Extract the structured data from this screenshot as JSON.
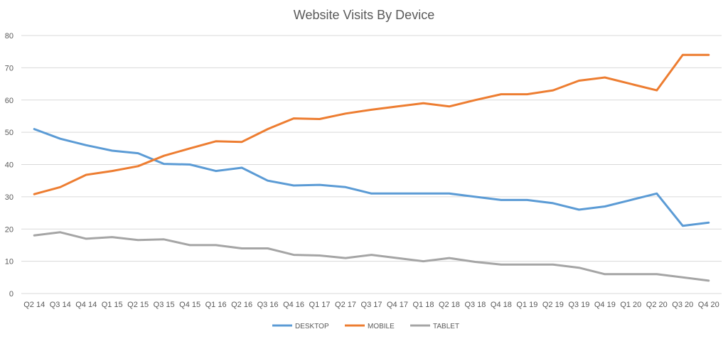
{
  "chart_data": {
    "type": "line",
    "title": "Website Visits By Device",
    "xlabel": "",
    "ylabel": "",
    "ylim": [
      0,
      80
    ],
    "yticks": [
      0,
      10,
      20,
      30,
      40,
      50,
      60,
      70,
      80
    ],
    "grid": true,
    "legend_position": "bottom",
    "categories": [
      "Q2 14",
      "Q3 14",
      "Q4 14",
      "Q1 15",
      "Q2 15",
      "Q3 15",
      "Q4 15",
      "Q1 16",
      "Q2 16",
      "Q3 16",
      "Q4 16",
      "Q1 17",
      "Q2 17",
      "Q3 17",
      "Q4 17",
      "Q1 18",
      "Q2 18",
      "Q3 18",
      "Q4 18",
      "Q1 19",
      "Q2 19",
      "Q3 19",
      "Q4 19",
      "Q1 20",
      "Q2 20",
      "Q3 20",
      "Q4 20"
    ],
    "series": [
      {
        "name": "DESKTOP",
        "color": "#5b9bd5",
        "values": [
          51,
          48,
          46,
          44.3,
          43.5,
          40.2,
          40,
          38,
          39,
          35,
          33.5,
          33.7,
          33,
          31,
          31,
          31,
          31,
          30,
          29,
          29,
          28,
          26,
          27,
          29,
          31,
          21,
          22
        ]
      },
      {
        "name": "MOBILE",
        "color": "#ed7d31",
        "values": [
          30.8,
          33,
          36.8,
          38,
          39.5,
          42.7,
          45,
          47.2,
          47,
          51,
          54.3,
          54.1,
          55.8,
          57,
          58,
          59,
          58,
          60,
          61.8,
          61.8,
          63,
          66,
          67,
          65,
          63,
          74,
          74
        ]
      },
      {
        "name": "TABLET",
        "color": "#a5a5a5",
        "values": [
          18,
          19,
          17,
          17.5,
          16.6,
          16.8,
          15,
          15,
          14,
          14,
          12,
          11.8,
          11,
          12,
          11,
          10,
          11,
          9.8,
          9,
          9,
          9,
          8,
          6,
          6,
          6,
          5,
          4
        ]
      }
    ]
  }
}
